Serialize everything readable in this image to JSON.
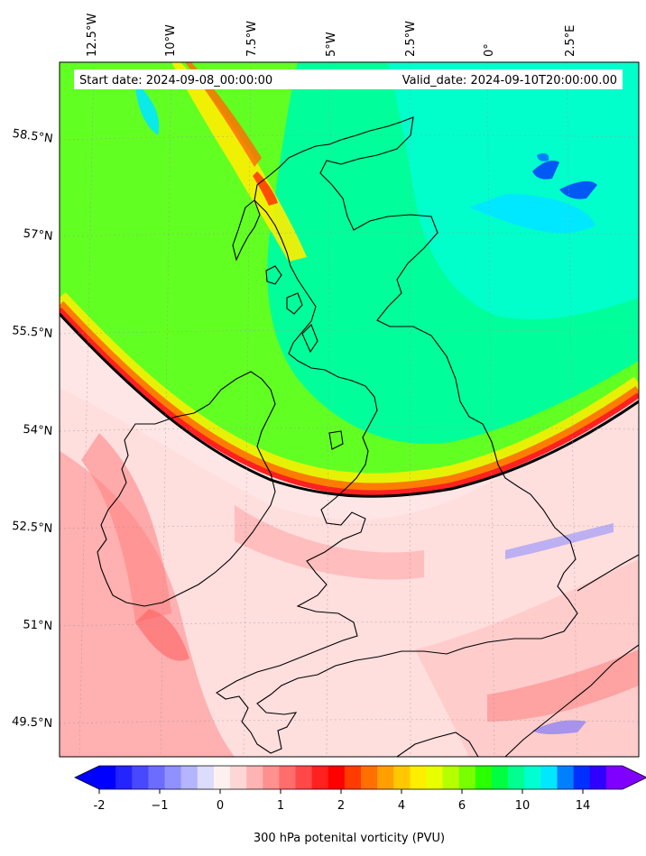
{
  "map": {
    "start_label": "Start date: 2024-09-08_00:00:00",
    "valid_label": "Valid_date: 2024-09-10T20:00:00.00",
    "lon_labels": [
      "12.5°W",
      "10°W",
      "7.5°W",
      "5°W",
      "2.5°W",
      "0°",
      "2.5°E"
    ],
    "lat_labels": [
      "58.5°N",
      "57°N",
      "55.5°N",
      "54°N",
      "52.5°N",
      "51°N",
      "49.5°N"
    ]
  },
  "colorbar": {
    "title": "300 hPa potenital vorticity (PVU)",
    "ticks": [
      "-2",
      "−1",
      "0",
      "1",
      "2",
      "4",
      "6",
      "10",
      "14"
    ],
    "colors": [
      "#0000ff",
      "#2424ff",
      "#4848ff",
      "#6c6cff",
      "#9090ff",
      "#b4b4ff",
      "#dcdcff",
      "#fff0f0",
      "#ffd6d6",
      "#ffb4b4",
      "#ff9090",
      "#ff6c6c",
      "#ff4848",
      "#ff2020",
      "#ff0000",
      "#ff3c00",
      "#ff7000",
      "#ffa000",
      "#ffc800",
      "#ffee00",
      "#e8ff00",
      "#b4ff00",
      "#78ff00",
      "#2aff00",
      "#00ff40",
      "#00ff90",
      "#00ffd0",
      "#00e8ff",
      "#0080ff",
      "#0030ff",
      "#3000ff",
      "#8000ff"
    ]
  },
  "colors": {
    "ridge_pink": "#ffd8d8",
    "trough_green": "#62ff22",
    "core_cyan": "#00ffb8",
    "jet_black": "#000000"
  }
}
